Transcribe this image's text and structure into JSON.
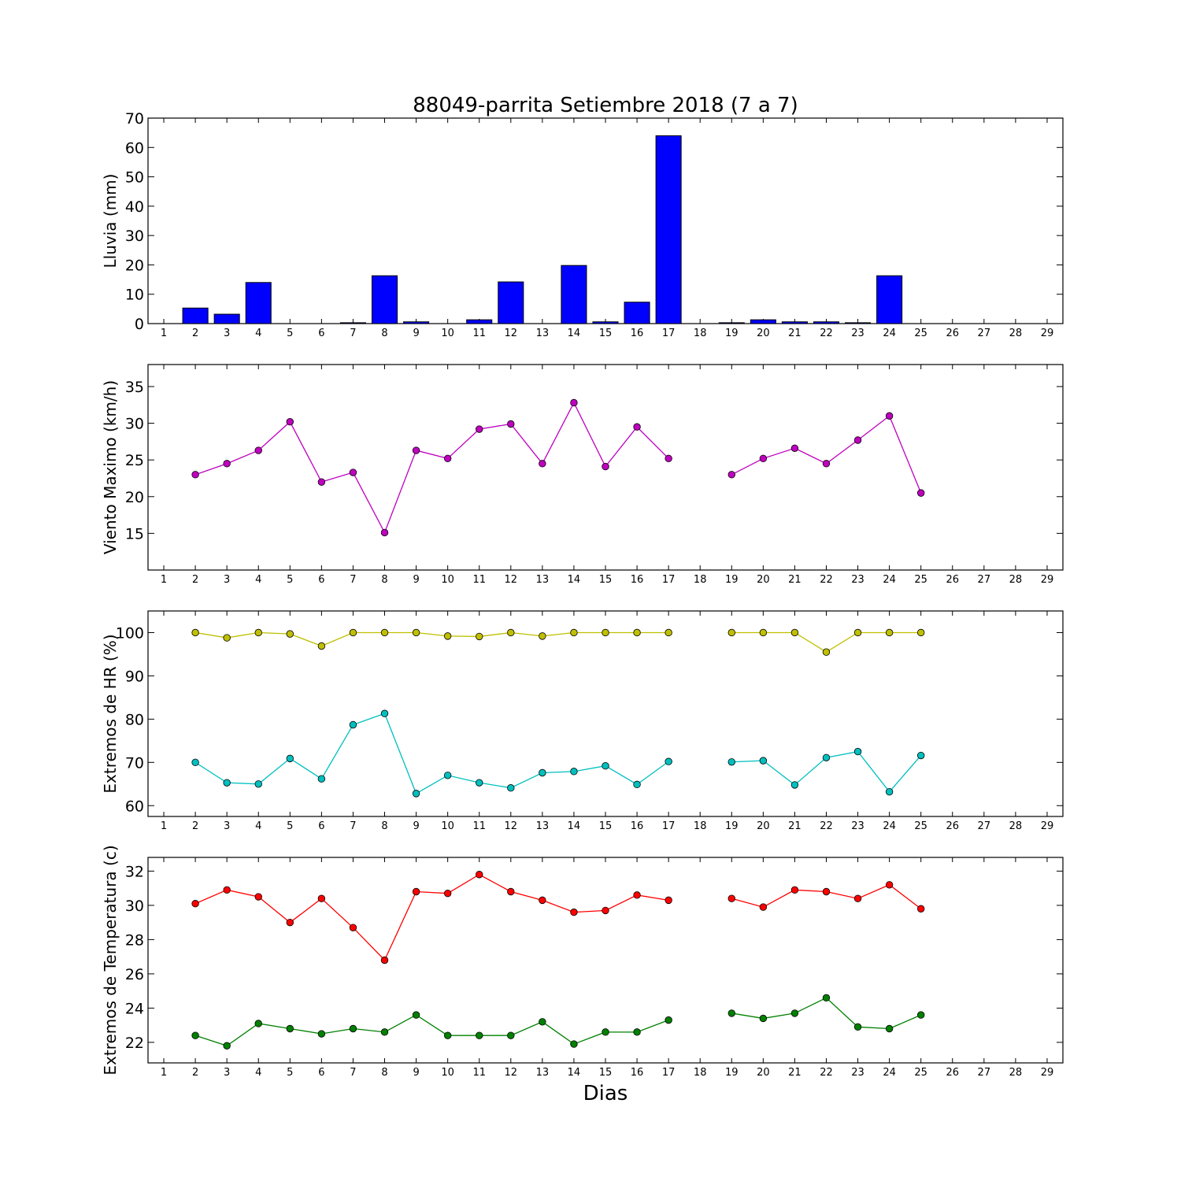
{
  "chart_data": {
    "type": "multi-panel",
    "title": "88049-parrita Setiembre 2018  (7 a 7)",
    "xlabel": "Dias",
    "x_ticks": [
      "1",
      "2",
      "3",
      "4",
      "5",
      "6",
      "7",
      "8",
      "9",
      "10",
      "11",
      "12",
      "13",
      "14",
      "15",
      "16",
      "17",
      "18",
      "19",
      "20",
      "21",
      "22",
      "23",
      "24",
      "25",
      "26",
      "27",
      "28",
      "29"
    ],
    "panels": [
      {
        "type": "bar",
        "ylabel": "Lluvia (mm)",
        "ylim": [
          0,
          70
        ],
        "y_ticks": [
          "0",
          "10",
          "20",
          "30",
          "40",
          "50",
          "60",
          "70"
        ],
        "bar_color": "#0000ff",
        "series": [
          {
            "x": [
              1,
              2,
              3,
              4,
              5,
              6,
              7,
              8,
              9,
              10,
              11,
              12,
              13,
              14,
              15,
              16,
              17,
              18,
              19,
              20,
              21,
              22,
              23,
              24,
              25,
              26,
              27,
              28,
              29
            ],
            "values": [
              0,
              5.3,
              3.2,
              14,
              0,
              0,
              0.3,
              16.3,
              0.6,
              0,
              1.3,
              14.2,
              0,
              19.8,
              0.6,
              7.3,
              64,
              0,
              0.3,
              1.3,
              0.6,
              0.6,
              0.3,
              16.3,
              0,
              0,
              0,
              0,
              0
            ]
          }
        ]
      },
      {
        "type": "line",
        "ylabel": "Viento Maximo (km/h)",
        "ylim": [
          10,
          38
        ],
        "y_ticks": [
          "15",
          "20",
          "25",
          "30",
          "35"
        ],
        "series": [
          {
            "color": "#bf00bf",
            "x": [
              2,
              3,
              4,
              5,
              6,
              7,
              8,
              9,
              10,
              11,
              12,
              13,
              14,
              15,
              16,
              17,
              18,
              19,
              20,
              21,
              22,
              23,
              24,
              25
            ],
            "values": [
              23,
              24.5,
              26.3,
              30.2,
              22,
              23.3,
              15.1,
              26.3,
              25.2,
              29.2,
              29.9,
              24.5,
              32.8,
              24.1,
              29.5,
              25.2,
              null,
              23,
              25.2,
              26.6,
              24.5,
              27.7,
              31,
              20.5
            ]
          }
        ]
      },
      {
        "type": "line",
        "ylabel": "Extremos de HR (%)",
        "ylim": [
          57.5,
          105
        ],
        "y_ticks": [
          "60",
          "70",
          "80",
          "90",
          "100"
        ],
        "series": [
          {
            "color": "#bfbf00",
            "x": [
              2,
              3,
              4,
              5,
              6,
              7,
              8,
              9,
              10,
              11,
              12,
              13,
              14,
              15,
              16,
              17,
              18,
              19,
              20,
              21,
              22,
              23,
              24,
              25
            ],
            "values": [
              100,
              98.8,
              100,
              99.7,
              96.9,
              100,
              100,
              100,
              99.2,
              99.1,
              100,
              99.2,
              100,
              100,
              100,
              100,
              null,
              100,
              100,
              100,
              95.5,
              100,
              100,
              100
            ]
          },
          {
            "color": "#00bfbf",
            "x": [
              2,
              3,
              4,
              5,
              6,
              7,
              8,
              9,
              10,
              11,
              12,
              13,
              14,
              15,
              16,
              17,
              18,
              19,
              20,
              21,
              22,
              23,
              24,
              25
            ],
            "values": [
              70,
              65.3,
              65,
              70.9,
              66.2,
              78.7,
              81.3,
              62.8,
              67,
              65.3,
              64.1,
              67.6,
              67.9,
              69.2,
              64.9,
              70.2,
              null,
              70.1,
              70.4,
              64.8,
              71.1,
              72.5,
              63.2,
              71.6
            ]
          }
        ]
      },
      {
        "type": "line",
        "ylabel": "Extremos de Temperatura (c)",
        "ylim": [
          20.8,
          32.8
        ],
        "y_ticks": [
          "22",
          "24",
          "26",
          "28",
          "30",
          "32"
        ],
        "series": [
          {
            "color": "#ff0000",
            "x": [
              2,
              3,
              4,
              5,
              6,
              7,
              8,
              9,
              10,
              11,
              12,
              13,
              14,
              15,
              16,
              17,
              18,
              19,
              20,
              21,
              22,
              23,
              24,
              25
            ],
            "values": [
              30.1,
              30.9,
              30.5,
              29,
              30.4,
              28.7,
              26.8,
              30.8,
              30.7,
              31.8,
              30.8,
              30.3,
              29.6,
              29.7,
              30.6,
              30.3,
              null,
              30.4,
              29.9,
              30.9,
              30.8,
              30.4,
              31.2,
              29.8
            ]
          },
          {
            "color": "#008000",
            "x": [
              2,
              3,
              4,
              5,
              6,
              7,
              8,
              9,
              10,
              11,
              12,
              13,
              14,
              15,
              16,
              17,
              18,
              19,
              20,
              21,
              22,
              23,
              24,
              25
            ],
            "values": [
              22.4,
              21.8,
              23.1,
              22.8,
              22.5,
              22.8,
              22.6,
              23.6,
              22.4,
              22.4,
              22.4,
              23.2,
              21.9,
              22.6,
              22.6,
              23.3,
              null,
              23.7,
              23.4,
              23.7,
              24.6,
              22.9,
              22.8,
              23.6
            ]
          }
        ]
      }
    ]
  }
}
